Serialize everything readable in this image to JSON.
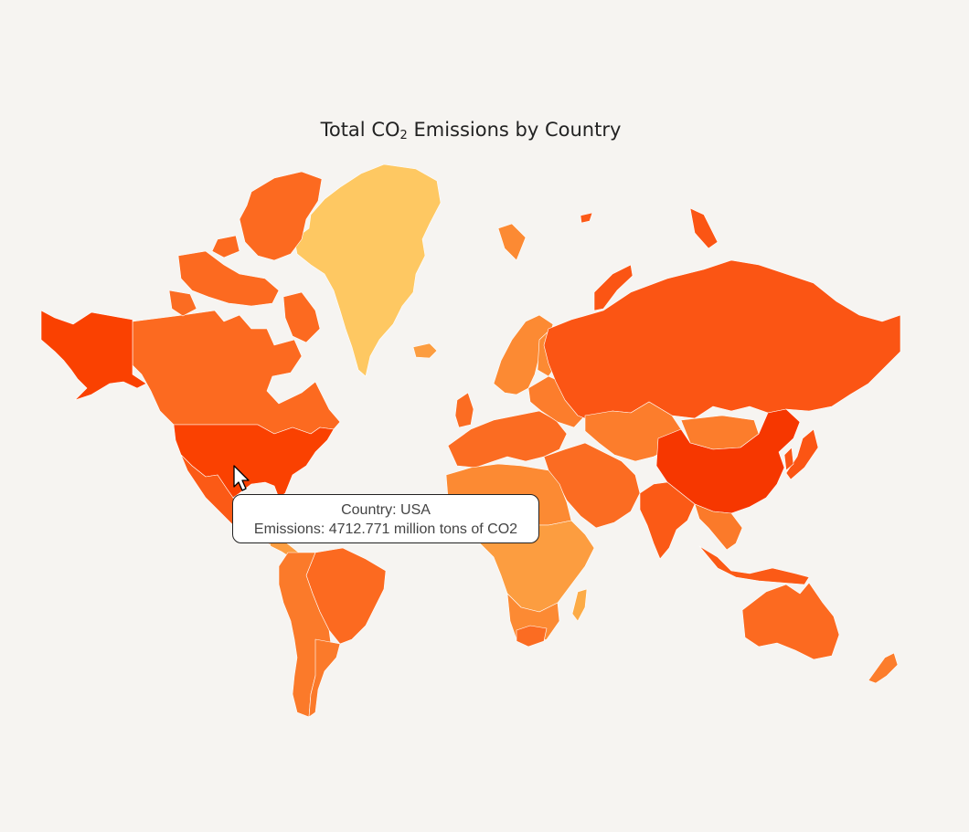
{
  "chart_data": {
    "type": "choropleth",
    "title_text": "Total CO",
    "title_sub": "2",
    "title_rest": " Emissions by Country",
    "color_scale": [
      "#fec862",
      "#fc9d40",
      "#fb6c22",
      "#fb5514",
      "#fa4101"
    ],
    "regions": [
      {
        "name": "USA",
        "value": 4712.771,
        "color": "#fa4101"
      },
      {
        "name": "China",
        "value": null,
        "color": "#f63700"
      },
      {
        "name": "Russia",
        "value": null,
        "color": "#fb5514"
      },
      {
        "name": "Canada",
        "value": null,
        "color": "#fc6a20"
      },
      {
        "name": "Greenland",
        "value": null,
        "color": "#fec862"
      },
      {
        "name": "India",
        "value": null,
        "color": "#fb5a16"
      },
      {
        "name": "Australia",
        "value": null,
        "color": "#fc6a20"
      },
      {
        "name": "Brazil",
        "value": null,
        "color": "#fc6a20"
      }
    ]
  },
  "tooltip": {
    "line1": "Country: USA",
    "line2": "Emissions: 4712.771 million tons of CO2"
  }
}
